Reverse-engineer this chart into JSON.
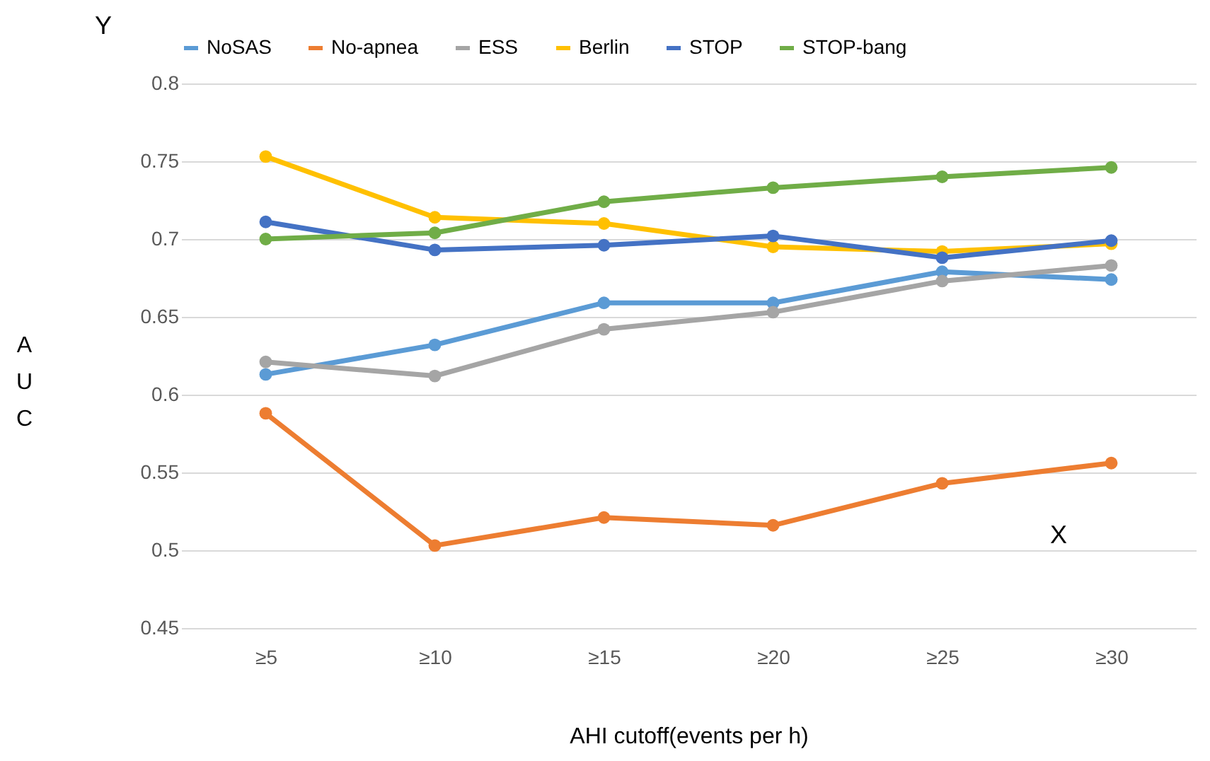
{
  "chart_data": {
    "type": "line",
    "xlabel": "AHI cutoff(events per h)",
    "ylabel": "AUC",
    "annotations": [
      "Y",
      "X"
    ],
    "categories": [
      "≥5",
      "≥10",
      "≥15",
      "≥20",
      "≥25",
      "≥30"
    ],
    "series": [
      {
        "name": "NoSAS",
        "color": "#5b9bd5",
        "values": [
          0.613,
          0.632,
          0.659,
          0.659,
          0.679,
          0.674
        ]
      },
      {
        "name": "No-apnea",
        "color": "#ed7d31",
        "values": [
          0.588,
          0.503,
          0.521,
          0.516,
          0.543,
          0.556
        ]
      },
      {
        "name": "ESS",
        "color": "#a5a5a5",
        "values": [
          0.621,
          0.612,
          0.642,
          0.653,
          0.673,
          0.683
        ]
      },
      {
        "name": "Berlin",
        "color": "#ffc000",
        "values": [
          0.753,
          0.714,
          0.71,
          0.695,
          0.692,
          0.697
        ]
      },
      {
        "name": "STOP",
        "color": "#4472c4",
        "values": [
          0.711,
          0.693,
          0.696,
          0.702,
          0.688,
          0.699
        ]
      },
      {
        "name": "STOP-bang",
        "color": "#70ad47",
        "values": [
          0.7,
          0.704,
          0.724,
          0.733,
          0.74,
          0.746
        ]
      }
    ],
    "ylim": [
      0.45,
      0.8
    ],
    "yticks": [
      0.45,
      0.5,
      0.55,
      0.6,
      0.65,
      0.7,
      0.75,
      0.8
    ],
    "grid": "y",
    "legend": "top",
    "marker": "circle",
    "line_style": "solid"
  }
}
